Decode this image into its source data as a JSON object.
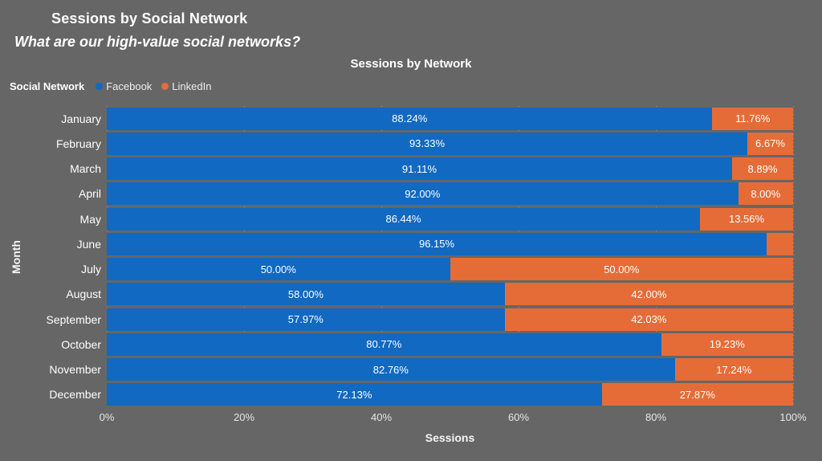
{
  "page": {
    "background_color": "#666666"
  },
  "header": {
    "title": "Sessions by Social Network",
    "subtitle": "What are our high-value social networks?"
  },
  "chart": {
    "title": "Sessions by Network",
    "legend": {
      "title": "Social Network",
      "items": [
        {
          "label": "Facebook",
          "color": "#1169C2"
        },
        {
          "label": "LinkedIn",
          "color": "#E66C37"
        }
      ]
    },
    "x_axis": {
      "title": "Sessions",
      "ticks": [
        "0%",
        "20%",
        "40%",
        "60%",
        "80%",
        "100%"
      ]
    },
    "y_axis": {
      "title": "Month"
    }
  },
  "chart_data": {
    "type": "bar",
    "orientation": "horizontal",
    "stacked_100_percent": true,
    "title": "Sessions by Network",
    "xlabel": "Sessions",
    "ylabel": "Month",
    "xlim": [
      0,
      100
    ],
    "grid": "vertical-dotted",
    "legend_position": "top-left",
    "categories": [
      "January",
      "February",
      "March",
      "April",
      "May",
      "June",
      "July",
      "August",
      "September",
      "October",
      "November",
      "December"
    ],
    "series": [
      {
        "name": "Facebook",
        "color": "#1169C2",
        "values": [
          88.24,
          93.33,
          91.11,
          92.0,
          86.44,
          96.15,
          50.0,
          58.0,
          57.97,
          80.77,
          82.76,
          72.13
        ],
        "labels": [
          "88.24%",
          "93.33%",
          "91.11%",
          "92.00%",
          "86.44%",
          "96.15%",
          "50.00%",
          "58.00%",
          "57.97%",
          "80.77%",
          "82.76%",
          "72.13%"
        ]
      },
      {
        "name": "LinkedIn",
        "color": "#E66C37",
        "values": [
          11.76,
          6.67,
          8.89,
          8.0,
          13.56,
          3.85,
          50.0,
          42.0,
          42.03,
          19.23,
          17.24,
          27.87
        ],
        "labels": [
          "11.76%",
          "6.67%",
          "8.89%",
          "8.00%",
          "13.56%",
          "",
          "50.00%",
          "42.00%",
          "42.03%",
          "19.23%",
          "17.24%",
          "27.87%"
        ]
      }
    ]
  }
}
